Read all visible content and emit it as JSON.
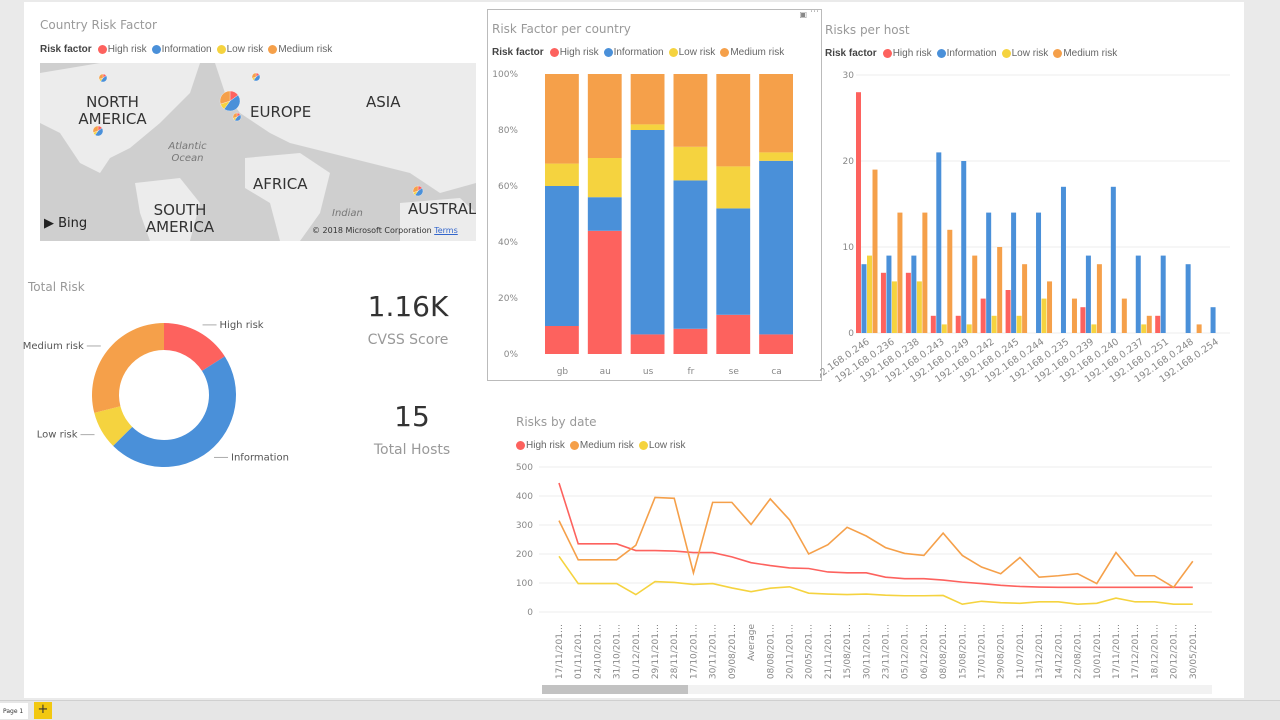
{
  "colors": {
    "high": "#fd625e",
    "info": "#4a90d9",
    "low": "#f5d33f",
    "medium": "#f5a04a"
  },
  "legend": {
    "label": "Risk factor",
    "items": [
      "High risk",
      "Information",
      "Low risk",
      "Medium risk"
    ]
  },
  "map": {
    "title": "Country Risk Factor",
    "labels": [
      "NORTH AMERICA",
      "EUROPE",
      "ASIA",
      "AFRICA",
      "SOUTH AMERICA",
      "AUSTRAL"
    ],
    "oceans": [
      "Atlantic Ocean",
      "Indian"
    ],
    "brand": "Bing",
    "copyright": "© 2018 Microsoft Corporation",
    "terms": "Terms"
  },
  "donut": {
    "title": "Total Risk",
    "chart_data": {
      "type": "pie",
      "categories": [
        "High risk",
        "Information",
        "Low risk",
        "Medium risk"
      ],
      "values": [
        16,
        46.5,
        8.5,
        29
      ],
      "unit": "percent share (estimated)"
    }
  },
  "kpis": [
    {
      "value": "1.16K",
      "label": "CVSS Score"
    },
    {
      "value": "15",
      "label": "Total Hosts"
    }
  ],
  "chart_data": [
    {
      "type": "bar",
      "stacked": true,
      "percent": true,
      "title": "Risk Factor per country",
      "categories": [
        "gb",
        "au",
        "us",
        "fr",
        "se",
        "ca"
      ],
      "yticks": [
        "0%",
        "20%",
        "40%",
        "60%",
        "80%",
        "100%"
      ],
      "ylim": [
        0,
        100
      ],
      "series": [
        {
          "name": "High risk",
          "values": [
            10,
            44,
            7,
            9,
            14,
            7
          ]
        },
        {
          "name": "Information",
          "values": [
            50,
            12,
            73,
            53,
            38,
            62
          ]
        },
        {
          "name": "Low risk",
          "values": [
            8,
            14,
            2,
            12,
            15,
            3
          ]
        },
        {
          "name": "Medium risk",
          "values": [
            32,
            30,
            18,
            26,
            33,
            28
          ]
        }
      ]
    },
    {
      "type": "bar",
      "title": "Risks per host",
      "categories": [
        "192.168.0.246",
        "192.168.0.236",
        "192.168.0.238",
        "192.168.0.243",
        "192.168.0.249",
        "192.168.0.242",
        "192.168.0.245",
        "192.168.0.244",
        "192.168.0.235",
        "192.168.0.239",
        "192.168.0.240",
        "192.168.0.237",
        "192.168.0.251",
        "192.168.0.248",
        "192.168.0.254"
      ],
      "yticks": [
        "0",
        "10",
        "20",
        "30"
      ],
      "ylim": [
        0,
        30
      ],
      "series": [
        {
          "name": "High risk",
          "values": [
            28,
            7,
            7,
            2,
            2,
            4,
            5,
            0,
            0,
            3,
            0,
            0,
            2,
            0,
            0
          ]
        },
        {
          "name": "Information",
          "values": [
            8,
            9,
            9,
            21,
            20,
            14,
            14,
            14,
            17,
            9,
            17,
            9,
            9,
            8,
            3
          ]
        },
        {
          "name": "Low risk",
          "values": [
            9,
            6,
            6,
            1,
            1,
            2,
            2,
            4,
            0,
            1,
            0,
            1,
            0,
            0,
            0
          ]
        },
        {
          "name": "Medium risk",
          "values": [
            19,
            14,
            14,
            12,
            9,
            10,
            8,
            6,
            4,
            8,
            4,
            2,
            0,
            1,
            0
          ]
        }
      ]
    },
    {
      "type": "line",
      "title": "Risks by date",
      "categories": [
        "17/11/201…",
        "01/11/201…",
        "24/10/201…",
        "31/10/201…",
        "01/12/201…",
        "29/11/201…",
        "28/11/201…",
        "17/10/201…",
        "30/11/201…",
        "09/08/201…",
        "Average",
        "08/08/201…",
        "20/11/201…",
        "20/05/201…",
        "21/11/201…",
        "15/08/201…",
        "30/11/201…",
        "23/11/201…",
        "05/12/201…",
        "06/12/201…",
        "08/08/201…",
        "15/08/201…",
        "17/01/201…",
        "29/08/201…",
        "11/07/201…",
        "13/12/201…",
        "14/12/201…",
        "22/08/201…",
        "10/01/201…",
        "17/11/201…",
        "17/12/201…",
        "18/12/201…",
        "20/12/201…",
        "30/05/201…"
      ],
      "yticks": [
        "0",
        "100",
        "200",
        "300",
        "400",
        "500"
      ],
      "ylim": [
        0,
        500
      ],
      "series": [
        {
          "name": "High risk",
          "values": [
            445,
            235,
            235,
            235,
            212,
            212,
            210,
            205,
            205,
            190,
            170,
            160,
            152,
            150,
            138,
            135,
            135,
            120,
            115,
            115,
            110,
            103,
            98,
            92,
            88,
            86,
            85,
            85,
            85,
            85,
            85,
            85,
            85,
            85
          ]
        },
        {
          "name": "Medium risk",
          "values": [
            315,
            180,
            180,
            180,
            230,
            395,
            392,
            135,
            378,
            378,
            302,
            390,
            318,
            200,
            232,
            292,
            262,
            222,
            202,
            195,
            272,
            195,
            155,
            132,
            188,
            120,
            125,
            132,
            98,
            205,
            125,
            125,
            85,
            175
          ]
        },
        {
          "name": "Low risk",
          "values": [
            192,
            98,
            98,
            98,
            60,
            105,
            102,
            95,
            98,
            83,
            70,
            82,
            87,
            65,
            62,
            60,
            62,
            58,
            56,
            56,
            57,
            27,
            37,
            32,
            30,
            35,
            35,
            27,
            30,
            48,
            35,
            35,
            27,
            27
          ]
        }
      ]
    }
  ],
  "footer": {
    "page_tab": "Page 1",
    "add_page": "+"
  }
}
